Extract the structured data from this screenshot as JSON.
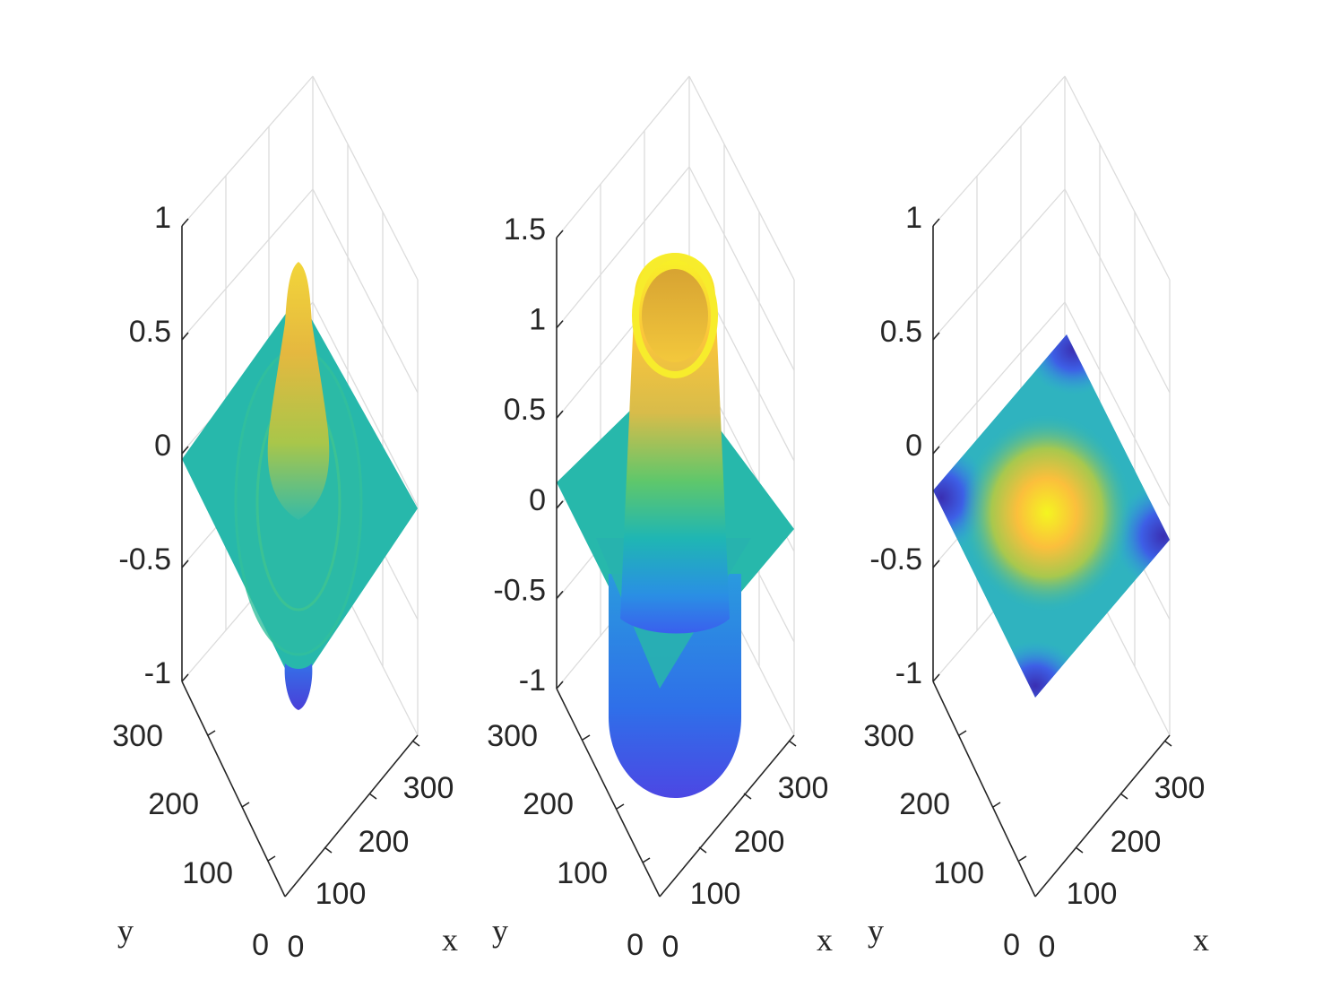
{
  "chart_data": [
    {
      "type": "surface",
      "title": "",
      "xlabel": "x",
      "ylabel": "y",
      "zlabel": "",
      "xlim": [
        0,
        300
      ],
      "ylim": [
        0,
        300
      ],
      "zlim": [
        -1,
        1
      ],
      "x_ticks": [
        "0",
        "100",
        "200",
        "300"
      ],
      "y_ticks": [
        "0",
        "100",
        "200",
        "300"
      ],
      "z_ticks": [
        "-1",
        "-0.5",
        "0",
        "0.5",
        "1"
      ],
      "z_tick_values": [
        -1,
        -0.5,
        0,
        0.5,
        1
      ],
      "grid": true,
      "colormap": "parula",
      "surface_min": -0.9,
      "surface_max": 0.85,
      "description_key": "radial-ripple"
    },
    {
      "type": "surface",
      "title": "",
      "xlabel": "x",
      "ylabel": "y",
      "zlabel": "",
      "xlim": [
        0,
        300
      ],
      "ylim": [
        0,
        300
      ],
      "zlim": [
        -1,
        1.5
      ],
      "x_ticks": [
        "0",
        "100",
        "200",
        "300"
      ],
      "y_ticks": [
        "0",
        "100",
        "200",
        "300"
      ],
      "z_ticks": [
        "-1",
        "-0.5",
        "0",
        "0.5",
        "1",
        "1.5"
      ],
      "z_tick_values": [
        -1,
        -0.5,
        0,
        0.5,
        1,
        1.5
      ],
      "grid": true,
      "colormap": "parula",
      "surface_min": -1.2,
      "surface_max": 1.35,
      "description_key": "tube"
    },
    {
      "type": "surface",
      "title": "",
      "xlabel": "x",
      "ylabel": "y",
      "zlabel": "",
      "xlim": [
        0,
        300
      ],
      "ylim": [
        0,
        300
      ],
      "zlim": [
        -1,
        1
      ],
      "x_ticks": [
        "0",
        "100",
        "200",
        "300"
      ],
      "y_ticks": [
        "0",
        "100",
        "200",
        "300"
      ],
      "z_ticks": [
        "-1",
        "-0.5",
        "0",
        "0.5",
        "1"
      ],
      "z_tick_values": [
        -1,
        -0.5,
        0,
        0.5,
        1
      ],
      "grid": true,
      "colormap": "parula",
      "surface_min": -0.6,
      "surface_max": 0.6,
      "description_key": "flat-cosine-patch"
    }
  ],
  "colors": {
    "parula_low": "#3e26a8",
    "parula_mid_blue": "#2f8ce6",
    "parula_teal": "#1fb8b0",
    "parula_green": "#7fcb3e",
    "parula_orange": "#f9b43a",
    "parula_high": "#f9fb15"
  }
}
